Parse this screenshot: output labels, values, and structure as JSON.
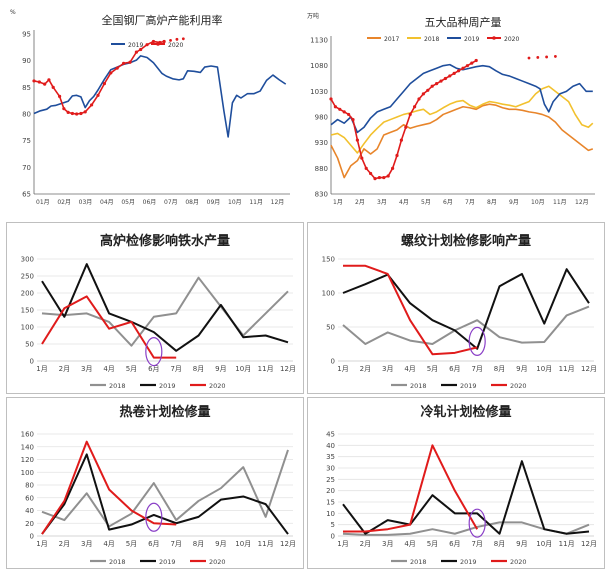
{
  "chart_data": [
    {
      "type": "line",
      "title": "全国钢厂高炉产能利用率",
      "unit": "%",
      "ylim": [
        65,
        95
      ],
      "yticks": [
        65,
        70,
        75,
        80,
        85,
        90,
        95
      ],
      "xlabels": [
        "01月",
        "02月",
        "03月",
        "04月",
        "05月",
        "06月",
        "07月",
        "08月",
        "09月",
        "10月",
        "11月",
        "12月"
      ],
      "series": [
        {
          "name": "2019",
          "color": "#1f4e9c",
          "dashed": false,
          "x": [
            0,
            0.3,
            0.6,
            0.8,
            1,
            1.3,
            1.6,
            1.8,
            2,
            2.2,
            2.4,
            2.6,
            2.8,
            3,
            3.3,
            3.6,
            3.9,
            4.2,
            4.5,
            4.8,
            5,
            5.3,
            5.6,
            6,
            6.2,
            6.5,
            6.8,
            7,
            7.2,
            7.5,
            7.8,
            8,
            8.3,
            8.6,
            8.9,
            9.1,
            9.3,
            9.5,
            9.7,
            10,
            10.3,
            10.6,
            10.9,
            11.2,
            11.5,
            11.8
          ],
          "values": [
            80.1,
            80.6,
            80.9,
            81.5,
            81.6,
            82,
            82.4,
            83.4,
            83.5,
            83.2,
            81.2,
            82.5,
            83.3,
            84.5,
            86.5,
            88.3,
            88.8,
            89.3,
            89.6,
            90.1,
            90.9,
            90.6,
            89.6,
            87.6,
            87.1,
            86.6,
            86.4,
            86.6,
            88.1,
            88,
            87.8,
            88.8,
            89,
            88.8,
            80.6,
            75.7,
            82.1,
            83.5,
            83,
            83.8,
            83.8,
            84.3,
            86.3,
            87.3,
            86.4,
            85.6
          ]
        },
        {
          "name": "2020",
          "color": "#e01b1b",
          "dashed": false,
          "x": [
            0,
            0.25,
            0.5,
            0.7,
            0.9,
            1.2,
            1.4,
            1.6,
            1.8,
            2,
            2.2,
            2.4,
            2.7,
            3,
            3.3,
            3.6,
            3.9,
            4.2,
            4.5,
            4.8,
            5,
            5.3,
            5.6,
            5.9,
            6.1
          ],
          "values": [
            86.2,
            86,
            85.6,
            86.4,
            85,
            83.3,
            81,
            80.3,
            80.1,
            80,
            80.1,
            80.4,
            81.7,
            83.5,
            85.7,
            87.7,
            88.6,
            89.5,
            89.7,
            91.6,
            92.1,
            93,
            93.6,
            93.4,
            93.6
          ]
        },
        {
          "name": "",
          "color": "#e01b1b",
          "dashed": true,
          "x": [
            6.1,
            6.4,
            6.7,
            7.0
          ],
          "values": [
            93.6,
            93.8,
            94,
            94.1
          ]
        }
      ]
    },
    {
      "type": "line",
      "title": "五大品种周产量",
      "unit": "万吨",
      "ylim": [
        830,
        1130
      ],
      "yticks": [
        830,
        880,
        930,
        980,
        1030,
        1080,
        1130
      ],
      "xlabels": [
        "1月",
        "2月",
        "3月",
        "4月",
        "5月",
        "6月",
        "7月",
        "8月",
        "9月",
        "10月",
        "11月",
        "12月"
      ],
      "series": [
        {
          "name": "2017",
          "color": "#e8852b",
          "dashed": false,
          "x": [
            0,
            0.3,
            0.6,
            0.9,
            1.2,
            1.5,
            1.8,
            2.1,
            2.4,
            2.7,
            3,
            3.3,
            3.6,
            3.9,
            4.2,
            4.5,
            4.8,
            5.1,
            5.4,
            5.7,
            6,
            6.3,
            6.6,
            6.9,
            7.2,
            7.5,
            7.8,
            8.1,
            8.4,
            8.7,
            9,
            9.3,
            9.6,
            9.9,
            10.2,
            10.5,
            10.8,
            11.1,
            11.4,
            11.7,
            11.9
          ],
          "values": [
            925,
            900,
            862,
            885,
            895,
            918,
            908,
            918,
            945,
            950,
            955,
            965,
            958,
            962,
            965,
            968,
            975,
            985,
            990,
            995,
            1000,
            998,
            995,
            1002,
            1005,
            1003,
            998,
            995,
            995,
            993,
            990,
            988,
            985,
            980,
            970,
            955,
            945,
            935,
            925,
            915,
            918
          ]
        },
        {
          "name": "2018",
          "color": "#f2c12e",
          "dashed": false,
          "x": [
            0,
            0.3,
            0.6,
            0.9,
            1.2,
            1.5,
            1.8,
            2.1,
            2.4,
            2.7,
            3,
            3.3,
            3.6,
            3.9,
            4.2,
            4.5,
            4.8,
            5.1,
            5.4,
            5.7,
            6,
            6.3,
            6.6,
            6.9,
            7.2,
            7.5,
            7.8,
            8.1,
            8.4,
            8.7,
            9,
            9.3,
            9.6,
            9.9,
            10.2,
            10.5,
            10.8,
            11.1,
            11.4,
            11.7,
            11.9
          ],
          "values": [
            945,
            948,
            940,
            925,
            910,
            928,
            945,
            958,
            970,
            975,
            980,
            985,
            988,
            992,
            995,
            985,
            990,
            998,
            1005,
            1010,
            1012,
            1003,
            998,
            1005,
            1010,
            1008,
            1005,
            1003,
            1000,
            1005,
            1010,
            1025,
            1035,
            1040,
            1030,
            1020,
            1010,
            985,
            965,
            960,
            968
          ]
        },
        {
          "name": "2019",
          "color": "#1f4e9c",
          "dashed": false,
          "x": [
            0,
            0.3,
            0.6,
            0.9,
            1.2,
            1.5,
            1.8,
            2.1,
            2.4,
            2.7,
            3,
            3.3,
            3.6,
            3.9,
            4.2,
            4.5,
            4.8,
            5.1,
            5.4,
            5.7,
            6,
            6.3,
            6.6,
            6.9,
            7.2,
            7.5,
            7.8,
            8.1,
            8.4,
            8.7,
            9,
            9.3,
            9.5,
            9.7,
            9.9,
            10.1,
            10.4,
            10.7,
            11,
            11.3,
            11.6,
            11.9
          ],
          "values": [
            965,
            975,
            968,
            980,
            950,
            960,
            978,
            990,
            995,
            1000,
            1015,
            1030,
            1045,
            1055,
            1065,
            1070,
            1075,
            1080,
            1082,
            1075,
            1072,
            1075,
            1078,
            1080,
            1078,
            1070,
            1063,
            1060,
            1055,
            1050,
            1045,
            1040,
            1035,
            1005,
            990,
            1010,
            1025,
            1030,
            1040,
            1045,
            1030,
            1030
          ]
        },
        {
          "name": "2020",
          "color": "#e01b1b",
          "dashed": false,
          "x": [
            0,
            0.2,
            0.4,
            0.6,
            0.8,
            1,
            1.2,
            1.4,
            1.6,
            1.8,
            2,
            2.2,
            2.4,
            2.6,
            2.8,
            3,
            3.2,
            3.4,
            3.6,
            3.8,
            4,
            4.2,
            4.4,
            4.6,
            4.8,
            5,
            5.2,
            5.4,
            5.6,
            5.8,
            6,
            6.2,
            6.4,
            6.6
          ],
          "values": [
            1015,
            1000,
            995,
            990,
            985,
            975,
            935,
            900,
            880,
            870,
            860,
            862,
            862,
            865,
            880,
            905,
            935,
            960,
            985,
            1000,
            1015,
            1025,
            1032,
            1040,
            1045,
            1050,
            1055,
            1060,
            1065,
            1070,
            1075,
            1080,
            1085,
            1090
          ]
        },
        {
          "name": "",
          "color": "#e01b1b",
          "dashed": true,
          "x": [
            9,
            9.4,
            9.8,
            10.2
          ],
          "values": [
            1095,
            1096,
            1097,
            1098
          ]
        }
      ]
    },
    {
      "type": "line",
      "title": "高炉检修影响铁水产量",
      "ylim": [
        0,
        300
      ],
      "yticks": [
        0,
        50,
        100,
        150,
        200,
        250,
        300
      ],
      "xlabels": [
        "1月",
        "2月",
        "3月",
        "4月",
        "5月",
        "6月",
        "7月",
        "8月",
        "9月",
        "10月",
        "11月",
        "12月"
      ],
      "series": [
        {
          "name": "2018",
          "color": "#909090",
          "values": [
            140,
            135,
            140,
            115,
            45,
            130,
            140,
            245,
            160,
            75,
            140,
            205
          ]
        },
        {
          "name": "2019",
          "color": "#111111",
          "values": [
            235,
            130,
            285,
            140,
            115,
            85,
            30,
            75,
            165,
            70,
            75,
            55
          ]
        },
        {
          "name": "2020",
          "color": "#e01b1b",
          "values": [
            50,
            155,
            190,
            95,
            115,
            10,
            10
          ]
        }
      ]
    },
    {
      "type": "line",
      "title": "螺纹计划检修影响产量",
      "ylim": [
        0,
        150
      ],
      "yticks": [
        0,
        50,
        100,
        150
      ],
      "xlabels": [
        "1月",
        "2月",
        "3月",
        "4月",
        "5月",
        "6月",
        "7月",
        "8月",
        "9月",
        "10月",
        "11月",
        "12月"
      ],
      "series": [
        {
          "name": "2018",
          "color": "#909090",
          "values": [
            53,
            25,
            42,
            30,
            25,
            45,
            60,
            35,
            27,
            28,
            67,
            80
          ]
        },
        {
          "name": "2019",
          "color": "#111111",
          "values": [
            100,
            113,
            127,
            85,
            60,
            45,
            18,
            110,
            128,
            55,
            135,
            85
          ]
        },
        {
          "name": "2020",
          "color": "#e01b1b",
          "values": [
            140,
            140,
            128,
            60,
            10,
            12,
            20
          ]
        }
      ]
    },
    {
      "type": "line",
      "title": "热卷计划检修量",
      "ylim": [
        0,
        160
      ],
      "yticks": [
        0,
        20,
        40,
        60,
        80,
        100,
        120,
        140,
        160
      ],
      "xlabels": [
        "1月",
        "2月",
        "3月",
        "4月",
        "5月",
        "6月",
        "7月",
        "8月",
        "9月",
        "10月",
        "11月",
        "12月"
      ],
      "series": [
        {
          "name": "2018",
          "color": "#909090",
          "values": [
            38,
            25,
            67,
            15,
            35,
            83,
            25,
            55,
            75,
            108,
            30,
            135
          ]
        },
        {
          "name": "2019",
          "color": "#111111",
          "values": [
            3,
            50,
            128,
            10,
            18,
            33,
            20,
            30,
            57,
            62,
            50,
            3
          ]
        },
        {
          "name": "2020",
          "color": "#e01b1b",
          "values": [
            3,
            55,
            148,
            73,
            40,
            20,
            18
          ]
        }
      ]
    },
    {
      "type": "line",
      "title": "冷轧计划检修量",
      "ylim": [
        0,
        45
      ],
      "yticks": [
        0,
        5,
        10,
        15,
        20,
        25,
        30,
        35,
        40,
        45
      ],
      "xlabels": [
        "1月",
        "2月",
        "3月",
        "4月",
        "5月",
        "6月",
        "7月",
        "8月",
        "9月",
        "10月",
        "11月",
        "12月"
      ],
      "series": [
        {
          "name": "2018",
          "color": "#909090",
          "values": [
            1,
            0.5,
            0.5,
            1,
            3,
            1,
            4,
            6,
            6,
            3,
            1,
            5
          ]
        },
        {
          "name": "2019",
          "color": "#111111",
          "values": [
            14,
            1,
            7,
            5,
            18,
            10,
            10,
            1,
            33,
            3,
            1,
            2
          ]
        },
        {
          "name": "2020",
          "color": "#e01b1b",
          "values": [
            2,
            2,
            3,
            5,
            40,
            20,
            3
          ]
        }
      ]
    }
  ]
}
